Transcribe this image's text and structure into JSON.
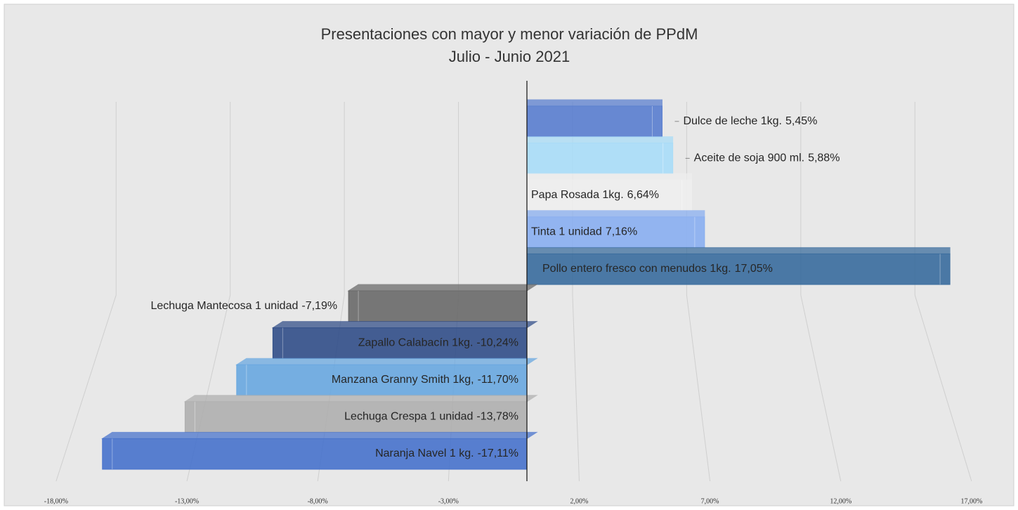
{
  "chart_data": {
    "type": "bar",
    "orientation": "horizontal",
    "title": "Presentaciones con mayor y menor variación de PPdM",
    "subtitle": "Julio - Junio 2021",
    "categories": [
      "Dulce de leche  1kg.",
      "Aceite de soja 900 ml.",
      "Papa Rosada 1kg.",
      "Tinta  1 unidad",
      "Pollo entero fresco con menudos 1kg.",
      "Lechuga Mantecosa 1 unidad",
      "Zapallo Calabacín 1kg.",
      "Manzana Granny Smith 1kg,",
      "Lechuga Crespa 1 unidad",
      "Naranja Navel 1 kg."
    ],
    "values": [
      5.45,
      5.88,
      6.64,
      7.16,
      17.05,
      -7.19,
      -10.24,
      -11.7,
      -13.78,
      -17.11
    ],
    "value_labels": [
      "5,45%",
      "5,88%",
      "6,64%",
      "7,16%",
      "17,05%",
      "-7,19%",
      "-10,24%",
      "-11,70%",
      "-13,78%",
      "-17,11%"
    ],
    "colors": [
      "#5b7fcf",
      "#a9dcf7",
      "#eeeeee",
      "#8aaff0",
      "#3c6e9e",
      "#6b6b6b",
      "#34508a",
      "#6aa8e0",
      "#b0b0b0",
      "#4a74cc"
    ],
    "xlim": [
      -18,
      17
    ],
    "xticks": [
      {
        "value": -18,
        "label": "-18,00%"
      },
      {
        "value": -13,
        "label": "-13,00%"
      },
      {
        "value": -8,
        "label": "-8,00%"
      },
      {
        "value": -3,
        "label": "-3,00%"
      },
      {
        "value": 2,
        "label": "2,00%"
      },
      {
        "value": 7,
        "label": "7,00%"
      },
      {
        "value": 12,
        "label": "12,00%"
      },
      {
        "value": 17,
        "label": "17,00%"
      }
    ],
    "grid": true
  }
}
